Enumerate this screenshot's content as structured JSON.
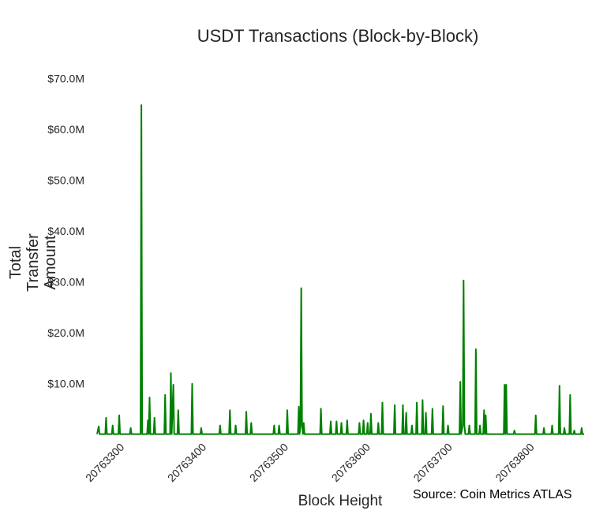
{
  "chart_data": {
    "type": "line",
    "title": "USDT Transactions (Block-by-Block)",
    "x_label": "Block Height",
    "y_label": "Total Transfer Amount",
    "annotation": "Source: Coin Metrics ATLAS",
    "color": "#008000",
    "grid": false,
    "xlim": [
      20763266,
      20763860
    ],
    "xticks": [
      20763300,
      20763400,
      20763500,
      20763600,
      20763700,
      20763800
    ],
    "ylim": [
      0,
      70000000
    ],
    "yticks": [
      {
        "value": 10000000,
        "label": "$10.0M"
      },
      {
        "value": 20000000,
        "label": "$20.0M"
      },
      {
        "value": 30000000,
        "label": "$30.0M"
      },
      {
        "value": 40000000,
        "label": "$40.0M"
      },
      {
        "value": 50000000,
        "label": "$50.0M"
      },
      {
        "value": 60000000,
        "label": "$60.0M"
      },
      {
        "value": 70000000,
        "label": "$70.0M"
      }
    ],
    "x": [
      20763266,
      20763268,
      20763269,
      20763276,
      20763277,
      20763278,
      20763284,
      20763285,
      20763286,
      20763292,
      20763293,
      20763294,
      20763306,
      20763307,
      20763308,
      20763319,
      20763320,
      20763321,
      20763327,
      20763328,
      20763329,
      20763330,
      20763331,
      20763335,
      20763336,
      20763337,
      20763348,
      20763349,
      20763350,
      20763355,
      20763356,
      20763357,
      20763359,
      20763360,
      20763364,
      20763365,
      20763366,
      20763381,
      20763382,
      20763383,
      20763392,
      20763393,
      20763394,
      20763415,
      20763416,
      20763417,
      20763427,
      20763428,
      20763429,
      20763434,
      20763435,
      20763436,
      20763447,
      20763448,
      20763449,
      20763453,
      20763454,
      20763455,
      20763481,
      20763482,
      20763483,
      20763487,
      20763488,
      20763489,
      20763497,
      20763498,
      20763499,
      20763511,
      20763512,
      20763513,
      20763514,
      20763515,
      20763516,
      20763517,
      20763518,
      20763519,
      20763538,
      20763539,
      20763540,
      20763550,
      20763551,
      20763552,
      20763557,
      20763558,
      20763559,
      20763563,
      20763564,
      20763565,
      20763570,
      20763571,
      20763572,
      20763585,
      20763586,
      20763587,
      20763590,
      20763591,
      20763592,
      20763595,
      20763596,
      20763597,
      20763599,
      20763600,
      20763601,
      20763608,
      20763609,
      20763610,
      20763613,
      20763614,
      20763615,
      20763628,
      20763629,
      20763630,
      20763638,
      20763639,
      20763640,
      20763642,
      20763643,
      20763644,
      20763649,
      20763650,
      20763651,
      20763655,
      20763656,
      20763657,
      20763662,
      20763663,
      20763664,
      20763666,
      20763667,
      20763668,
      20763674,
      20763675,
      20763676,
      20763687,
      20763688,
      20763689,
      20763693,
      20763694,
      20763695,
      20763708,
      20763709,
      20763710,
      20763712,
      20763713,
      20763714,
      20763715,
      20763719,
      20763720,
      20763721,
      20763727,
      20763728,
      20763729,
      20763732,
      20763733,
      20763734,
      20763737,
      20763738,
      20763739,
      20763740,
      20763741,
      20763762,
      20763763,
      20763764,
      20763765,
      20763766,
      20763774,
      20763775,
      20763776,
      20763800,
      20763801,
      20763802,
      20763810,
      20763811,
      20763812,
      20763820,
      20763821,
      20763822,
      20763829,
      20763830,
      20763831,
      20763835,
      20763836,
      20763837,
      20763842,
      20763843,
      20763844,
      20763847,
      20763848,
      20763849,
      20763856,
      20763857,
      20763858,
      20763860
    ],
    "values": [
      300000,
      1800000,
      300000,
      300000,
      3500000,
      300000,
      300000,
      2000000,
      300000,
      300000,
      4000000,
      300000,
      300000,
      1500000,
      300000,
      300000,
      65000000,
      300000,
      300000,
      3000000,
      300000,
      7500000,
      300000,
      300000,
      3500000,
      300000,
      300000,
      8000000,
      300000,
      300000,
      12300000,
      300000,
      10000000,
      300000,
      300000,
      5000000,
      300000,
      300000,
      10200000,
      300000,
      300000,
      1500000,
      300000,
      300000,
      2000000,
      300000,
      300000,
      5000000,
      300000,
      300000,
      2000000,
      300000,
      300000,
      4700000,
      300000,
      300000,
      2500000,
      300000,
      300000,
      2000000,
      300000,
      300000,
      2000000,
      300000,
      300000,
      5000000,
      300000,
      300000,
      5700000,
      300000,
      2000000,
      29000000,
      2000000,
      300000,
      2500000,
      300000,
      300000,
      5300000,
      300000,
      300000,
      2800000,
      300000,
      300000,
      2800000,
      300000,
      300000,
      2500000,
      300000,
      300000,
      3000000,
      300000,
      300000,
      2500000,
      300000,
      300000,
      3000000,
      300000,
      300000,
      2500000,
      300000,
      300000,
      4300000,
      300000,
      300000,
      2500000,
      300000,
      300000,
      6500000,
      300000,
      300000,
      6000000,
      300000,
      300000,
      6000000,
      300000,
      300000,
      4500000,
      300000,
      300000,
      2000000,
      300000,
      300000,
      6500000,
      300000,
      300000,
      7000000,
      300000,
      300000,
      4500000,
      300000,
      300000,
      5300000,
      300000,
      300000,
      5800000,
      300000,
      300000,
      2000000,
      300000,
      300000,
      10600000,
      300000,
      2000000,
      30500000,
      2000000,
      300000,
      300000,
      2000000,
      300000,
      300000,
      17000000,
      300000,
      300000,
      2000000,
      300000,
      300000,
      5000000,
      300000,
      4000000,
      300000,
      300000,
      10000000,
      300000,
      10000000,
      300000,
      300000,
      1000000,
      300000,
      300000,
      4000000,
      300000,
      300000,
      1500000,
      300000,
      300000,
      2000000,
      300000,
      300000,
      9800000,
      300000,
      300000,
      1500000,
      300000,
      300000,
      8000000,
      300000,
      300000,
      1000000,
      300000,
      300000,
      1500000,
      300000,
      300000
    ]
  }
}
